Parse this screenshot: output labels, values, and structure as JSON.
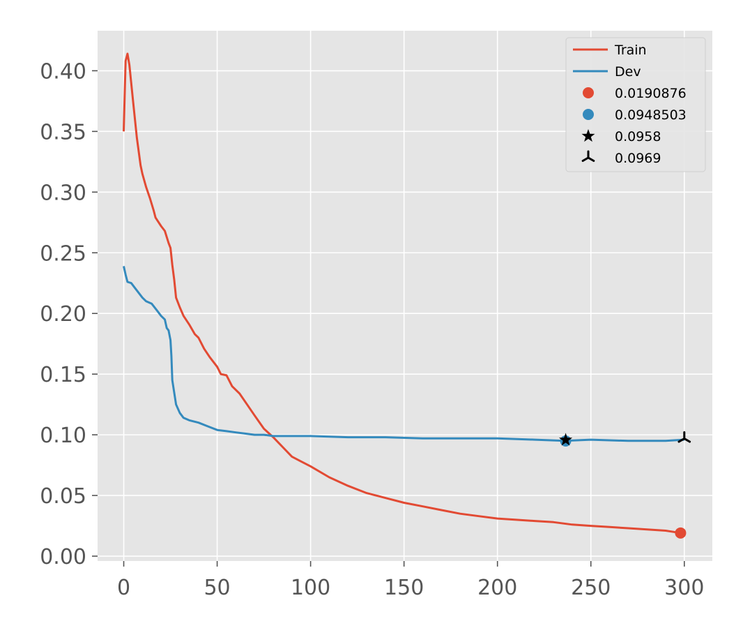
{
  "chart_data": {
    "type": "line",
    "title": "",
    "xlabel": "",
    "ylabel": "",
    "xlim": [
      -14,
      315
    ],
    "ylim": [
      -0.004,
      0.433
    ],
    "grid": true,
    "legend_position": "top-right",
    "x_ticks": [
      0,
      50,
      100,
      150,
      200,
      250,
      300
    ],
    "y_ticks": [
      0.0,
      0.05,
      0.1,
      0.15,
      0.2,
      0.25,
      0.3,
      0.35,
      0.4
    ],
    "x_tick_labels": [
      "0",
      "50",
      "100",
      "150",
      "200",
      "250",
      "300"
    ],
    "y_tick_labels": [
      "0.00",
      "0.05",
      "0.10",
      "0.15",
      "0.20",
      "0.25",
      "0.30",
      "0.35",
      "0.40"
    ],
    "series": [
      {
        "name": "Train",
        "color": "#E24A33",
        "points": [
          [
            0,
            0.35
          ],
          [
            1,
            0.408
          ],
          [
            2,
            0.414
          ],
          [
            3,
            0.405
          ],
          [
            5,
            0.375
          ],
          [
            7,
            0.345
          ],
          [
            9,
            0.322
          ],
          [
            10,
            0.315
          ],
          [
            12,
            0.304
          ],
          [
            14,
            0.295
          ],
          [
            16,
            0.285
          ],
          [
            17,
            0.279
          ],
          [
            20,
            0.272
          ],
          [
            22,
            0.268
          ],
          [
            24,
            0.258
          ],
          [
            25,
            0.254
          ],
          [
            26,
            0.24
          ],
          [
            27,
            0.228
          ],
          [
            28,
            0.213
          ],
          [
            30,
            0.205
          ],
          [
            32,
            0.198
          ],
          [
            35,
            0.191
          ],
          [
            38,
            0.183
          ],
          [
            40,
            0.18
          ],
          [
            43,
            0.171
          ],
          [
            46,
            0.164
          ],
          [
            50,
            0.156
          ],
          [
            52,
            0.15
          ],
          [
            55,
            0.149
          ],
          [
            58,
            0.14
          ],
          [
            62,
            0.134
          ],
          [
            66,
            0.125
          ],
          [
            70,
            0.116
          ],
          [
            75,
            0.105
          ],
          [
            80,
            0.098
          ],
          [
            85,
            0.09
          ],
          [
            90,
            0.082
          ],
          [
            95,
            0.078
          ],
          [
            100,
            0.074
          ],
          [
            110,
            0.065
          ],
          [
            120,
            0.058
          ],
          [
            130,
            0.052
          ],
          [
            140,
            0.048
          ],
          [
            150,
            0.044
          ],
          [
            160,
            0.041
          ],
          [
            170,
            0.038
          ],
          [
            180,
            0.035
          ],
          [
            190,
            0.033
          ],
          [
            200,
            0.031
          ],
          [
            210,
            0.03
          ],
          [
            220,
            0.029
          ],
          [
            230,
            0.028
          ],
          [
            240,
            0.026
          ],
          [
            250,
            0.025
          ],
          [
            260,
            0.024
          ],
          [
            270,
            0.023
          ],
          [
            280,
            0.022
          ],
          [
            290,
            0.021
          ],
          [
            298,
            0.0191
          ]
        ]
      },
      {
        "name": "Dev",
        "color": "#348ABD",
        "points": [
          [
            0,
            0.239
          ],
          [
            1,
            0.232
          ],
          [
            2,
            0.226
          ],
          [
            4,
            0.225
          ],
          [
            6,
            0.221
          ],
          [
            8,
            0.217
          ],
          [
            10,
            0.213
          ],
          [
            12,
            0.21
          ],
          [
            15,
            0.208
          ],
          [
            18,
            0.202
          ],
          [
            20,
            0.198
          ],
          [
            22,
            0.195
          ],
          [
            23,
            0.188
          ],
          [
            24,
            0.186
          ],
          [
            25,
            0.178
          ],
          [
            25.5,
            0.165
          ],
          [
            26,
            0.145
          ],
          [
            27,
            0.135
          ],
          [
            28,
            0.125
          ],
          [
            30,
            0.118
          ],
          [
            32,
            0.114
          ],
          [
            35,
            0.112
          ],
          [
            40,
            0.11
          ],
          [
            45,
            0.107
          ],
          [
            50,
            0.104
          ],
          [
            55,
            0.103
          ],
          [
            60,
            0.102
          ],
          [
            65,
            0.101
          ],
          [
            70,
            0.1
          ],
          [
            75,
            0.1
          ],
          [
            80,
            0.099
          ],
          [
            90,
            0.099
          ],
          [
            100,
            0.099
          ],
          [
            120,
            0.098
          ],
          [
            140,
            0.098
          ],
          [
            160,
            0.097
          ],
          [
            180,
            0.097
          ],
          [
            200,
            0.097
          ],
          [
            220,
            0.096
          ],
          [
            236,
            0.095
          ],
          [
            250,
            0.096
          ],
          [
            270,
            0.095
          ],
          [
            290,
            0.095
          ],
          [
            300,
            0.096
          ]
        ]
      }
    ],
    "markers": [
      {
        "label": "0.0190876",
        "shape": "circle",
        "color": "#E24A33",
        "x": 298,
        "y": 0.0191
      },
      {
        "label": "0.0948503",
        "shape": "circle",
        "color": "#348ABD",
        "x": 236.5,
        "y": 0.0949
      },
      {
        "label": "0.0958",
        "shape": "star",
        "color": "#000000",
        "x": 236.5,
        "y": 0.0958
      },
      {
        "label": "0.0969",
        "shape": "tri-down",
        "color": "#000000",
        "x": 300,
        "y": 0.0969
      }
    ],
    "colors": {
      "background": "#E5E5E5",
      "grid": "#FFFFFF",
      "tick_text": "#555555"
    }
  }
}
